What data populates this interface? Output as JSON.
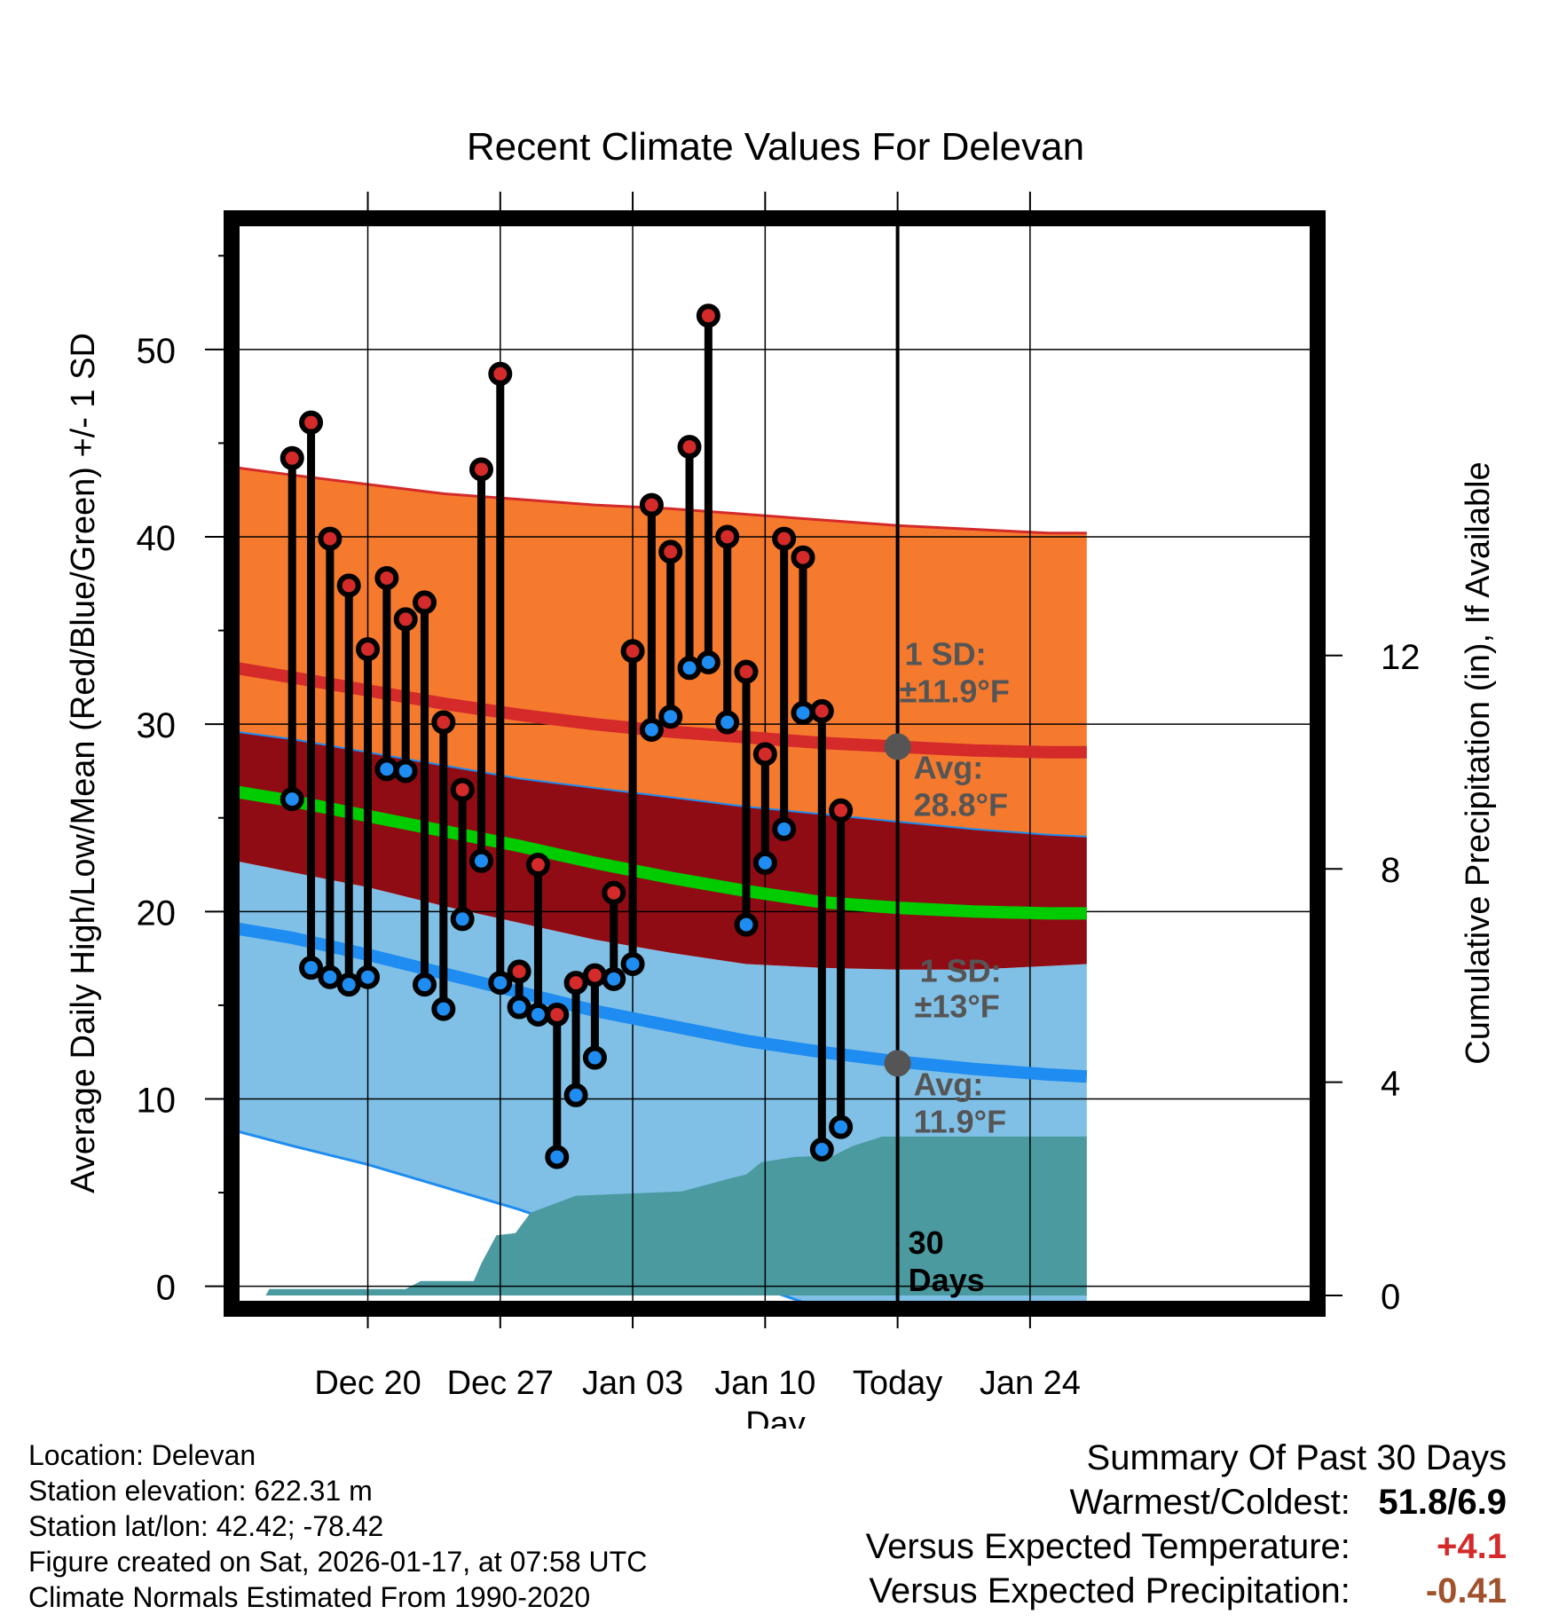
{
  "chart_data": {
    "type": "line",
    "title": "Recent Climate Values For Delevan",
    "xlabel": "Day",
    "ylabel": "Average Daily High/Low/Mean (Red/Blue/Green) +/- 1 SD",
    "y2label": "Cumulative Precipitation (in), If Available",
    "xlim": [
      -3.2,
      54.2
    ],
    "ylim": [
      -1.2,
      57
    ],
    "y2lim": [
      -0.25,
      20.2
    ],
    "x_ticks": [
      {
        "x": 4,
        "label": "Dec 20"
      },
      {
        "x": 11,
        "label": "Dec 27"
      },
      {
        "x": 18,
        "label": "Jan 03"
      },
      {
        "x": 25,
        "label": "Jan 10"
      },
      {
        "x": 32,
        "label": "Today"
      },
      {
        "x": 39,
        "label": "Jan 24"
      }
    ],
    "y_ticks": [
      0,
      10,
      20,
      30,
      40,
      50
    ],
    "y2_ticks": [
      0,
      4,
      8,
      12
    ],
    "today_x": 32,
    "normals": {
      "x": [
        -3,
        0,
        4,
        8,
        12,
        16,
        20,
        24,
        28,
        32,
        36,
        40,
        42
      ],
      "high_plus_sd": [
        43.7,
        43.3,
        42.8,
        42.3,
        42.0,
        41.7,
        41.5,
        41.2,
        40.9,
        40.6,
        40.4,
        40.2,
        40.2
      ],
      "high_avg": [
        33.0,
        32.5,
        31.8,
        31.1,
        30.5,
        30.0,
        29.6,
        29.3,
        29.0,
        28.8,
        28.6,
        28.5,
        28.5
      ],
      "high_minus_sd": [
        29.6,
        29.2,
        28.5,
        27.8,
        27.1,
        26.6,
        26.1,
        25.6,
        25.2,
        24.8,
        24.4,
        24.1,
        24.0
      ],
      "mean_avg": [
        26.4,
        25.9,
        25.1,
        24.3,
        23.5,
        22.6,
        21.8,
        21.1,
        20.5,
        20.2,
        20.0,
        19.9,
        19.9
      ],
      "low_plus_sd": [
        22.7,
        22.1,
        21.3,
        20.3,
        19.4,
        18.5,
        17.8,
        17.2,
        17.0,
        16.9,
        16.9,
        17.1,
        17.2
      ],
      "low_avg": [
        19.1,
        18.6,
        17.7,
        16.7,
        15.7,
        14.7,
        13.9,
        13.1,
        12.5,
        12.0,
        11.6,
        11.3,
        11.2
      ],
      "low_minus_sd": [
        8.3,
        7.5,
        6.5,
        5.3,
        4.1,
        2.7,
        1.4,
        0.2,
        -1.2,
        -1.2,
        -1.2,
        -1.2,
        -1.2
      ]
    },
    "series": [
      {
        "name": "Daily High",
        "color": "#d42a2a",
        "values": [
          44.2,
          46.1,
          39.9,
          37.4,
          34.0,
          37.8,
          35.6,
          36.5,
          30.1,
          26.5,
          43.6,
          48.7,
          16.8,
          22.5,
          14.5,
          16.2,
          16.6,
          21.0,
          33.9,
          41.7,
          39.2,
          44.8,
          51.8,
          40.0,
          32.8,
          28.4,
          39.9,
          38.9,
          30.7,
          25.4
        ]
      },
      {
        "name": "Daily Low",
        "color": "#1e8cf0",
        "values": [
          26.0,
          17.0,
          16.5,
          16.1,
          16.5,
          27.6,
          27.5,
          16.1,
          14.8,
          19.6,
          22.7,
          16.2,
          14.9,
          14.5,
          6.9,
          10.2,
          12.2,
          16.4,
          17.2,
          29.7,
          30.4,
          33.0,
          33.3,
          30.1,
          19.3,
          22.6,
          24.4,
          30.6,
          7.3,
          8.5
        ]
      },
      {
        "name": "Cumulative Precipitation",
        "color": "#4a9aa0",
        "x": [
          -1.4,
          -1.2,
          3.6,
          6,
          6.8,
          9.6,
          10,
          10.8,
          11.8,
          12.6,
          15,
          20.6,
          23.2,
          24,
          24.8,
          26.6,
          28.6,
          29.6,
          31.2,
          34,
          36,
          38,
          42
        ],
        "values": [
          0,
          0.12,
          0.12,
          0.12,
          0.27,
          0.27,
          0.6,
          1.13,
          1.17,
          1.55,
          1.87,
          1.95,
          2.2,
          2.27,
          2.5,
          2.6,
          2.62,
          2.8,
          2.98,
          2.98,
          2.98,
          2.98,
          2.98
        ]
      }
    ],
    "annotations": {
      "high_sd": "1 SD:",
      "high_sd_value": "±11.9°F",
      "high_avg_label": "Avg:",
      "high_avg_value": "28.8°F",
      "low_sd": "1 SD:",
      "low_sd_value": "±13°F",
      "low_avg_label": "Avg:",
      "low_avg_value": "11.9°F",
      "today_high_avg": 28.8,
      "today_low_avg": 11.9,
      "days_number": "30",
      "days_word": "Days"
    },
    "colors": {
      "high_band": "#f57a2e",
      "mean_band": "#900c14",
      "low_band": "#80c0e6",
      "high_line": "#d42a2a",
      "mean_line": "#00cc00",
      "low_line": "#1e8cf0",
      "precip": "#4a9aa0",
      "annotation": "#555555"
    }
  },
  "footer": {
    "location": "Location: Delevan",
    "elevation": "Station elevation: 622.31 m",
    "latlon": "Station lat/lon: 42.42; -78.42",
    "created": "Figure created on Sat, 2026-01-17, at 07:58 UTC",
    "normals": "Climate Normals Estimated From 1990-2020"
  },
  "summary": {
    "title": "Summary Of Past 30 Days",
    "warmest_label": "Warmest/Coldest:",
    "warmest_value": "51.8/6.9",
    "temp_label": "Versus Expected Temperature:",
    "temp_value": "+4.1",
    "temp_color": "#d42a2a",
    "precip_label": "Versus Expected Precipitation:",
    "precip_value": "-0.41",
    "precip_color": "#a0522d"
  }
}
